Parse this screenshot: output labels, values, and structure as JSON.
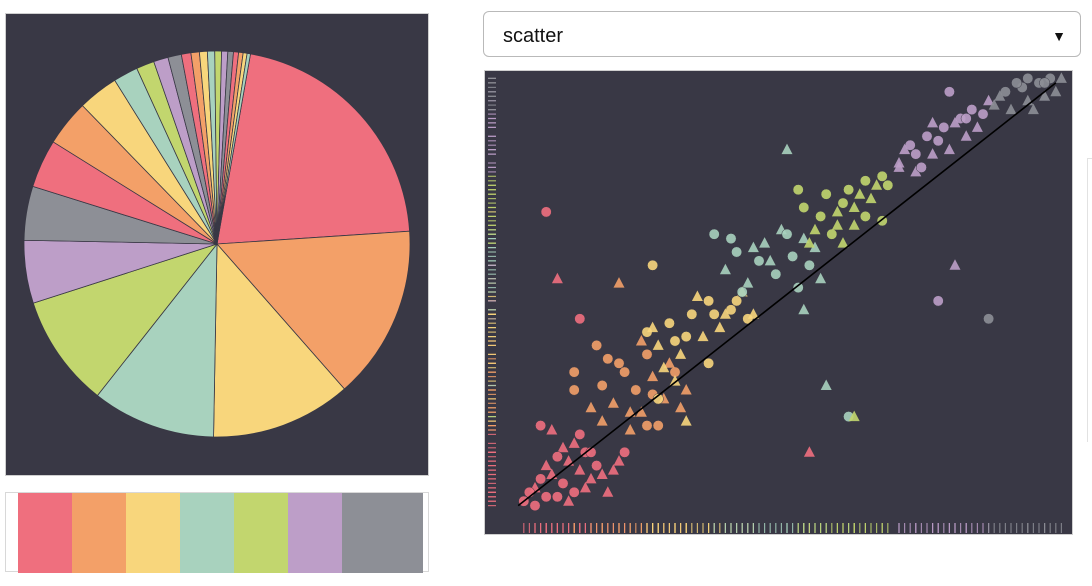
{
  "chart_type_selector": {
    "selected": "scatter",
    "arrow_icon": "triangle-down-icon"
  },
  "palette": {
    "colors": [
      "#ef6f7e",
      "#f3a068",
      "#f8d67c",
      "#a8d2be",
      "#c2d66e",
      "#bd9ec8",
      "#8d8f96"
    ]
  },
  "chart_data": [
    {
      "type": "pie",
      "title": "",
      "slice_values": [
        22.5,
        15.5,
        12.5,
        11.0,
        10.0,
        5.6,
        4.8,
        4.3,
        4.1,
        3.6,
        2.2,
        1.6,
        1.3,
        1.2,
        0.85,
        0.75,
        0.7,
        0.65,
        0.6,
        0.55,
        0.5,
        0.45,
        0.4,
        0.35,
        0.3
      ],
      "slice_colors": [
        "#ef6f7e",
        "#f3a068",
        "#f8d67c",
        "#a8d2be",
        "#c2d66e",
        "#bd9ec8",
        "#8d8f96",
        "#ef6f7e",
        "#f3a068",
        "#f8d67c",
        "#a8d2be",
        "#c2d66e",
        "#bd9ec8",
        "#8d8f96",
        "#ef6f7e",
        "#f3a068",
        "#f8d67c",
        "#a8d2be",
        "#c2d66e",
        "#bd9ec8",
        "#8d8f96",
        "#ef6f7e",
        "#f3a068",
        "#f8d67c",
        "#a8d2be"
      ],
      "start_angle_deg": 80,
      "background": "#393845"
    },
    {
      "type": "scatter",
      "title": "",
      "xlabel": "",
      "ylabel": "",
      "xlim": [
        0,
        10
      ],
      "ylim": [
        0,
        10
      ],
      "grid": false,
      "marker_shapes": [
        "circle",
        "triangle"
      ],
      "regression_line": {
        "from": [
          0.2,
          0.3
        ],
        "to": [
          9.8,
          9.8
        ],
        "color": "#000000"
      },
      "rug_plots": [
        "left",
        "bottom"
      ],
      "background": "#393845",
      "series": [
        {
          "color": "#ef6f7e",
          "points": [
            [
              0.3,
              0.4
            ],
            [
              0.5,
              0.7
            ],
            [
              0.7,
              0.5
            ],
            [
              0.8,
              1.0
            ],
            [
              1.0,
              0.8
            ],
            [
              1.1,
              1.3
            ],
            [
              1.2,
              0.6
            ],
            [
              1.3,
              1.1
            ],
            [
              1.4,
              1.5
            ],
            [
              1.5,
              0.9
            ],
            [
              1.6,
              1.2
            ],
            [
              1.0,
              1.6
            ],
            [
              0.9,
              0.5
            ],
            [
              1.7,
              1.0
            ],
            [
              0.6,
              0.9
            ],
            [
              1.2,
              1.7
            ],
            [
              0.4,
              0.6
            ],
            [
              1.9,
              1.1
            ],
            [
              1.5,
              1.5
            ],
            [
              0.7,
              1.2
            ],
            [
              0.6,
              2.1
            ],
            [
              0.8,
              2.0
            ],
            [
              1.3,
              1.9
            ],
            [
              1.8,
              0.6
            ],
            [
              2.1,
              1.5
            ],
            [
              1.1,
              0.4
            ],
            [
              0.5,
              0.3
            ],
            [
              1.4,
              0.7
            ],
            [
              0.9,
              1.4
            ],
            [
              2.0,
              1.3
            ]
          ],
          "outliers": [
            [
              0.7,
              6.9
            ],
            [
              0.9,
              5.4
            ],
            [
              1.3,
              4.5
            ],
            [
              5.4,
              1.5
            ]
          ]
        },
        {
          "color": "#f3a068",
          "points": [
            [
              1.2,
              3.3
            ],
            [
              1.5,
              2.5
            ],
            [
              1.7,
              3.0
            ],
            [
              1.9,
              2.6
            ],
            [
              2.0,
              3.5
            ],
            [
              2.2,
              2.0
            ],
            [
              2.3,
              2.9
            ],
            [
              2.4,
              2.4
            ],
            [
              2.5,
              3.7
            ],
            [
              2.6,
              3.2
            ],
            [
              2.7,
              2.1
            ],
            [
              2.8,
              2.7
            ],
            [
              3.0,
              3.3
            ],
            [
              3.1,
              2.5
            ],
            [
              1.6,
              3.9
            ],
            [
              1.7,
              2.2
            ],
            [
              2.1,
              3.3
            ],
            [
              2.9,
              3.5
            ],
            [
              2.6,
              2.8
            ],
            [
              3.2,
              2.9
            ],
            [
              1.8,
              3.6
            ],
            [
              2.4,
              4.0
            ],
            [
              1.2,
              2.9
            ],
            [
              2.2,
              2.4
            ],
            [
              2.5,
              2.1
            ]
          ],
          "outliers": [
            [
              2.0,
              5.3
            ]
          ]
        },
        {
          "color": "#f8d67c",
          "points": [
            [
              2.5,
              4.2
            ],
            [
              2.7,
              3.9
            ],
            [
              2.9,
              4.4
            ],
            [
              3.1,
              3.7
            ],
            [
              3.3,
              4.6
            ],
            [
              3.5,
              4.1
            ],
            [
              3.6,
              4.9
            ],
            [
              3.8,
              4.3
            ],
            [
              4.0,
              4.7
            ],
            [
              4.2,
              5.1
            ],
            [
              4.3,
              4.5
            ],
            [
              3.4,
              5.0
            ],
            [
              3.0,
              4.0
            ],
            [
              3.9,
              4.6
            ],
            [
              4.1,
              4.9
            ],
            [
              2.8,
              3.4
            ],
            [
              3.7,
              4.6
            ],
            [
              4.4,
              4.6
            ],
            [
              3.2,
              4.1
            ],
            [
              2.6,
              4.3
            ],
            [
              3.6,
              3.5
            ],
            [
              3.2,
              2.2
            ],
            [
              2.7,
              2.7
            ],
            [
              3.0,
              3.1
            ]
          ],
          "outliers": [
            [
              2.6,
              5.7
            ]
          ]
        },
        {
          "color": "#a8d2be",
          "points": [
            [
              3.9,
              5.6
            ],
            [
              4.1,
              6.0
            ],
            [
              4.3,
              5.3
            ],
            [
              4.5,
              5.8
            ],
            [
              4.6,
              6.2
            ],
            [
              4.8,
              5.5
            ],
            [
              4.9,
              6.5
            ],
            [
              5.1,
              5.9
            ],
            [
              5.3,
              6.3
            ],
            [
              5.4,
              5.7
            ],
            [
              5.5,
              6.1
            ],
            [
              4.0,
              6.3
            ],
            [
              4.7,
              5.8
            ],
            [
              5.2,
              5.2
            ],
            [
              4.4,
              6.1
            ],
            [
              5.0,
              6.4
            ],
            [
              5.6,
              5.4
            ],
            [
              3.7,
              6.4
            ],
            [
              5.3,
              4.7
            ],
            [
              4.2,
              5.1
            ]
          ],
          "outliers": [
            [
              5.0,
              8.3
            ],
            [
              6.1,
              2.3
            ],
            [
              5.7,
              3.0
            ]
          ]
        },
        {
          "color": "#c2d66e",
          "points": [
            [
              5.3,
              7.0
            ],
            [
              5.5,
              6.5
            ],
            [
              5.7,
              7.3
            ],
            [
              5.9,
              6.9
            ],
            [
              6.1,
              7.4
            ],
            [
              6.2,
              7.0
            ],
            [
              6.4,
              7.6
            ],
            [
              6.5,
              7.2
            ],
            [
              6.7,
              7.7
            ],
            [
              6.0,
              6.2
            ],
            [
              5.6,
              6.8
            ],
            [
              6.3,
              7.3
            ],
            [
              5.8,
              6.4
            ],
            [
              6.6,
              7.5
            ],
            [
              6.8,
              7.5
            ],
            [
              5.4,
              6.2
            ],
            [
              6.0,
              7.1
            ],
            [
              5.9,
              6.6
            ],
            [
              6.4,
              6.8
            ],
            [
              6.2,
              6.6
            ]
          ],
          "outliers": [
            [
              6.7,
              6.7
            ],
            [
              6.2,
              2.3
            ],
            [
              5.2,
              7.4
            ]
          ]
        },
        {
          "color": "#bd9ec8",
          "points": [
            [
              7.0,
              8.0
            ],
            [
              7.2,
              8.4
            ],
            [
              7.3,
              7.8
            ],
            [
              7.5,
              8.6
            ],
            [
              7.6,
              8.2
            ],
            [
              7.8,
              8.8
            ],
            [
              7.9,
              8.3
            ],
            [
              8.1,
              9.0
            ],
            [
              8.2,
              8.6
            ],
            [
              8.3,
              9.2
            ],
            [
              8.4,
              8.8
            ],
            [
              7.4,
              7.9
            ],
            [
              7.1,
              8.3
            ],
            [
              7.7,
              8.5
            ],
            [
              8.0,
              8.9
            ],
            [
              8.5,
              9.1
            ],
            [
              8.6,
              9.4
            ],
            [
              7.9,
              9.6
            ],
            [
              7.0,
              7.9
            ],
            [
              7.3,
              8.2
            ],
            [
              7.6,
              8.9
            ],
            [
              8.2,
              9.0
            ]
          ],
          "outliers": [
            [
              8.0,
              5.7
            ],
            [
              7.7,
              4.9
            ]
          ]
        },
        {
          "color": "#8d8f96",
          "points": [
            [
              8.7,
              9.3
            ],
            [
              8.9,
              9.6
            ],
            [
              9.0,
              9.2
            ],
            [
              9.2,
              9.7
            ],
            [
              9.3,
              9.4
            ],
            [
              9.5,
              9.8
            ],
            [
              9.6,
              9.5
            ],
            [
              9.7,
              9.9
            ],
            [
              9.4,
              9.2
            ],
            [
              9.1,
              9.8
            ],
            [
              9.8,
              9.6
            ],
            [
              9.3,
              9.9
            ],
            [
              8.8,
              9.5
            ],
            [
              9.6,
              9.8
            ],
            [
              9.9,
              9.9
            ]
          ],
          "outliers": [
            [
              8.6,
              4.5
            ]
          ]
        }
      ]
    }
  ]
}
